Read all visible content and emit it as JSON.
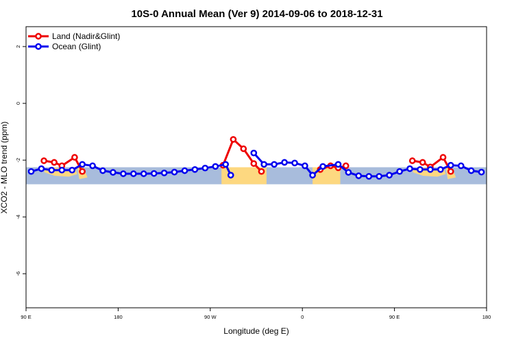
{
  "chart_data": {
    "type": "line",
    "title": "10S-0 Annual Mean (Ver 9)   2014-09-06 to 2018-12-31",
    "xlabel": "Longitude (deg E)",
    "ylabel": "XCO2 - MLO trend (ppm)",
    "xlim": [
      90,
      540
    ],
    "ylim": [
      -7.2,
      2.7
    ],
    "x_ticks": [
      {
        "value": 90,
        "label": "90 E"
      },
      {
        "value": 180,
        "label": "180"
      },
      {
        "value": 270,
        "label": "90 W"
      },
      {
        "value": 360,
        "label": "0"
      },
      {
        "value": 450,
        "label": "90 E"
      },
      {
        "value": 540,
        "label": "180"
      }
    ],
    "y_ticks": [
      {
        "value": 2,
        "label": "2"
      },
      {
        "value": 0,
        "label": "0"
      },
      {
        "value": -2,
        "label": "-2"
      },
      {
        "value": -4,
        "label": "-4"
      },
      {
        "value": -6,
        "label": "-6"
      }
    ],
    "legend_position": "top-left",
    "map_band": {
      "y_range": [
        -2.85,
        -2.25
      ],
      "ocean_color": "#a8bcdc",
      "land_color": "#fdd880"
    },
    "series": [
      {
        "name": "Land (Nadir&Glint)",
        "color": "#ee0000",
        "segments": [
          [
            [
              107.5,
              -2.02
            ],
            [
              117.5,
              -2.08
            ],
            [
              125,
              -2.2
            ],
            [
              137.5,
              -1.9
            ],
            [
              145,
              -2.4
            ]
          ],
          [
            [
              282.5,
              -2.18
            ],
            [
              292.5,
              -1.27
            ],
            [
              302.5,
              -1.6
            ],
            [
              312.5,
              -2.12
            ],
            [
              320,
              -2.4
            ]
          ],
          [
            [
              377.5,
              -2.33
            ],
            [
              387.5,
              -2.2
            ],
            [
              395,
              -2.27
            ],
            [
              402.5,
              -2.2
            ]
          ],
          [
            [
              467.5,
              -2.02
            ],
            [
              477.5,
              -2.08
            ],
            [
              485,
              -2.24
            ],
            [
              497.5,
              -1.9
            ],
            [
              505,
              -2.4
            ]
          ]
        ]
      },
      {
        "name": "Ocean (Glint)",
        "color": "#0000ee",
        "segments": [
          [
            [
              95,
              -2.4
            ],
            [
              105,
              -2.3
            ],
            [
              115,
              -2.35
            ],
            [
              125,
              -2.35
            ],
            [
              135,
              -2.35
            ],
            [
              145,
              -2.15
            ],
            [
              155,
              -2.2
            ],
            [
              165,
              -2.37
            ],
            [
              175,
              -2.43
            ],
            [
              185,
              -2.48
            ],
            [
              195,
              -2.48
            ],
            [
              205,
              -2.48
            ],
            [
              215,
              -2.47
            ],
            [
              225,
              -2.45
            ],
            [
              235,
              -2.42
            ],
            [
              245,
              -2.37
            ],
            [
              255,
              -2.33
            ],
            [
              265,
              -2.28
            ],
            [
              275,
              -2.22
            ],
            [
              285,
              -2.15
            ],
            [
              290,
              -2.53
            ]
          ],
          [
            [
              312.5,
              -1.75
            ],
            [
              322.5,
              -2.15
            ],
            [
              332.5,
              -2.15
            ],
            [
              342.5,
              -2.08
            ],
            [
              352.5,
              -2.1
            ],
            [
              362.5,
              -2.2
            ],
            [
              370,
              -2.53
            ],
            [
              380,
              -2.22
            ],
            [
              395,
              -2.15
            ],
            [
              405,
              -2.43
            ],
            [
              415,
              -2.55
            ],
            [
              425,
              -2.57
            ],
            [
              435,
              -2.57
            ],
            [
              445,
              -2.53
            ],
            [
              455,
              -2.4
            ],
            [
              465,
              -2.3
            ],
            [
              475,
              -2.33
            ],
            [
              485,
              -2.33
            ],
            [
              495,
              -2.33
            ],
            [
              505,
              -2.18
            ],
            [
              515,
              -2.2
            ],
            [
              525,
              -2.37
            ],
            [
              535,
              -2.42
            ]
          ]
        ]
      }
    ]
  }
}
